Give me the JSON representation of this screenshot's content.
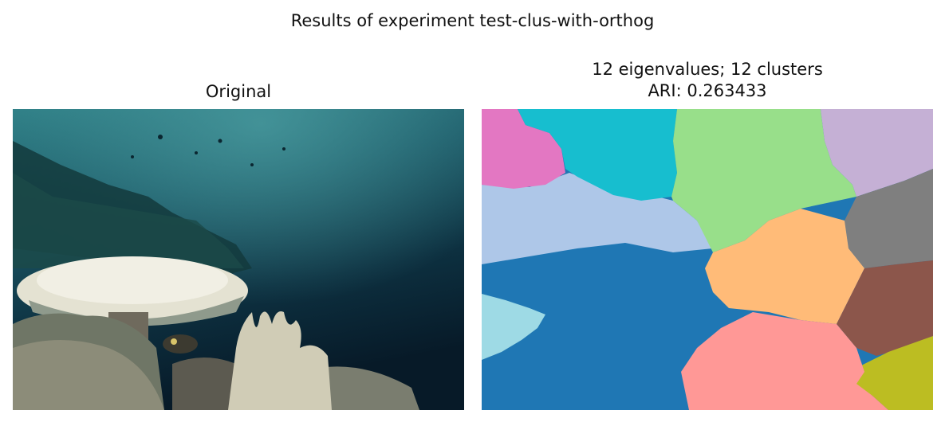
{
  "figure": {
    "suptitle": "Results of experiment test-clus-with-orthog"
  },
  "left_panel": {
    "title": "Original",
    "image_description_icon": "photo-coral-reef"
  },
  "right_panel": {
    "title_line1": "12 eigenvalues; 12 clusters",
    "title_line2": "ARI: 0.263433",
    "segment_colors": {
      "pink": "#e377c2",
      "cyan": "#17becf",
      "light_green": "#98df8a",
      "lavender": "#c5b0d5",
      "light_blue": "#aec7e8",
      "gray": "#7f7f7f",
      "orange": "#ffbb78",
      "blue": "#1f77b4",
      "brown": "#8c564b",
      "pale_cyan": "#9edae5",
      "salmon": "#ff9896",
      "olive": "#bcbd22"
    }
  }
}
